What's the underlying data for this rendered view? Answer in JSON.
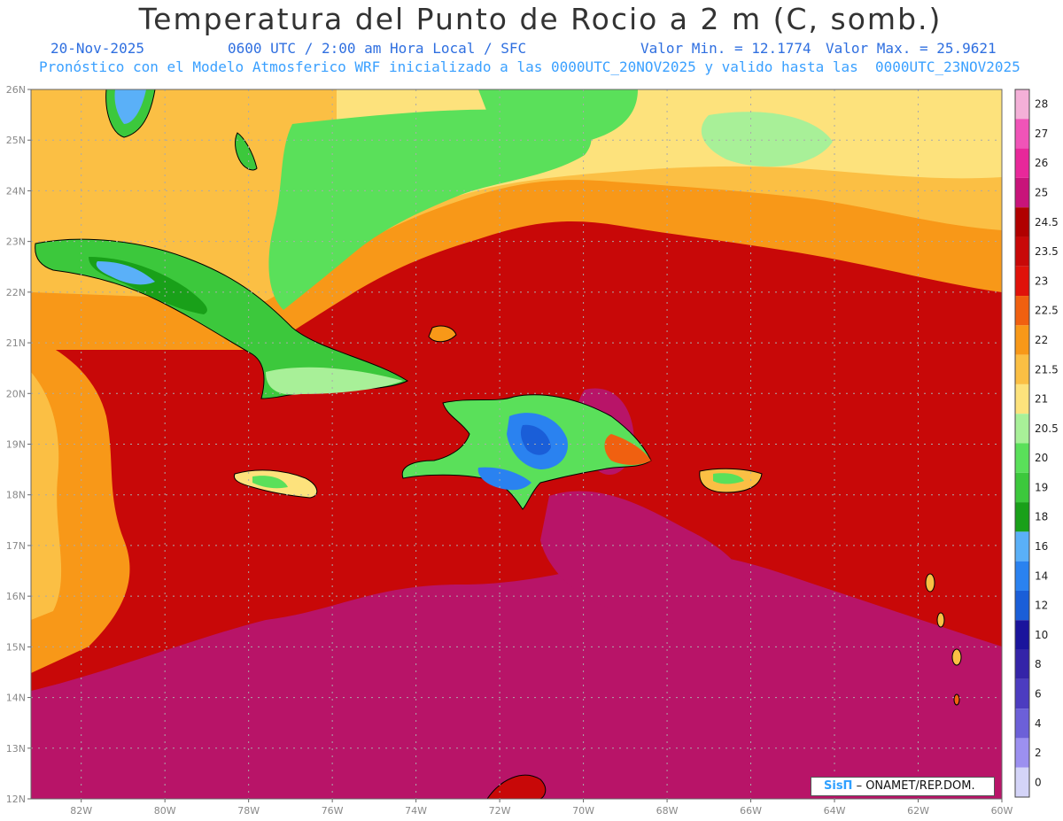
{
  "header": {
    "title": "Temperatura del Punto de Rocio a 2 m (C, somb.)",
    "date": "20-Nov-2025",
    "time": "0600 UTC / 2:00 am Hora Local / SFC",
    "min_label": "Valor Min. = 12.1774",
    "max_label": "Valor Max. = 25.9621",
    "forecast_line": "Pronóstico con el Modelo Atmosferico WRF inicializado a las 0000UTC_20NOV2025 y valido hasta las  0000UTC_23NOV2025"
  },
  "map": {
    "lat_ticks": [
      "26N",
      "25N",
      "24N",
      "23N",
      "22N",
      "21N",
      "20N",
      "19N",
      "18N",
      "17N",
      "16N",
      "15N",
      "14N",
      "13N",
      "12N"
    ],
    "lon_ticks": [
      "82W",
      "80W",
      "78W",
      "76W",
      "74W",
      "72W",
      "70W",
      "68W",
      "66W",
      "64W",
      "62W",
      "60W"
    ],
    "lat_range": [
      12,
      26
    ],
    "lon_range": [
      -83.2,
      -60
    ],
    "grid": true
  },
  "colorbar": {
    "levels": [
      "28",
      "27",
      "26",
      "25",
      "24.5",
      "23.5",
      "23",
      "22.5",
      "22",
      "21.5",
      "21",
      "20.5",
      "20",
      "19",
      "18",
      "16",
      "14",
      "12",
      "10",
      "8",
      "6",
      "4",
      "2",
      "0"
    ],
    "colors": [
      "#f4b0d8",
      "#f054b8",
      "#e8289a",
      "#c8147a",
      "#b00000",
      "#c80808",
      "#e0120a",
      "#f06010",
      "#f89818",
      "#fbbf44",
      "#fde27c",
      "#a8f098",
      "#5ae05a",
      "#3cc83c",
      "#19a019",
      "#5ab0f8",
      "#2a82f0",
      "#1a5ed8",
      "#1a149c",
      "#3424a8",
      "#4c3cc0",
      "#6c60d8",
      "#9c90f0",
      "#d4d4f8"
    ]
  },
  "credit": {
    "logo": "SisΠ",
    "text": " – ONAMET/REP.DOM."
  }
}
